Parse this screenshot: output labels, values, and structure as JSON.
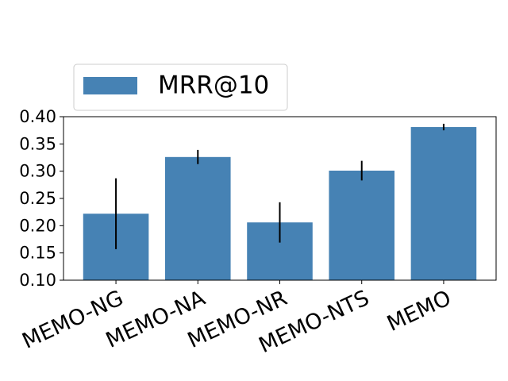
{
  "chart_data": {
    "type": "bar",
    "categories": [
      "MEMO-NG",
      "MEMO-NA",
      "MEMO-NR",
      "MEMO-NTS",
      "MEMO"
    ],
    "series": [
      {
        "name": "MRR@10",
        "color": "#4682b4",
        "values": [
          0.222,
          0.326,
          0.206,
          0.301,
          0.381
        ],
        "errors": [
          0.065,
          0.013,
          0.037,
          0.018,
          0.006
        ]
      }
    ],
    "ylim": [
      0.1,
      0.4
    ],
    "yticks": [
      {
        "value": 0.1,
        "label": "0.10"
      },
      {
        "value": 0.15,
        "label": "0.15"
      },
      {
        "value": 0.2,
        "label": "0.20"
      },
      {
        "value": 0.25,
        "label": "0.25"
      },
      {
        "value": 0.3,
        "label": "0.30"
      },
      {
        "value": 0.35,
        "label": "0.35"
      },
      {
        "value": 0.4,
        "label": "0.40"
      }
    ],
    "grid": false,
    "legend": "upper left"
  }
}
